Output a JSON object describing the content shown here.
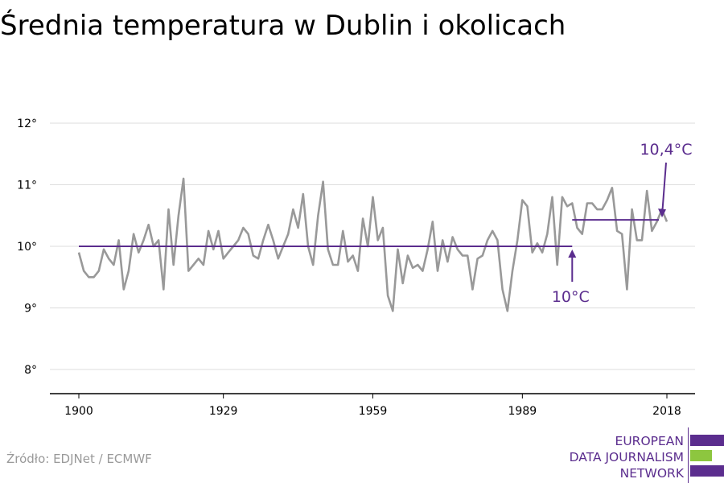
{
  "title": "Średnia temperatura w Dublin i okolicach",
  "source": "Źródło: EDJNet / ECMWF",
  "logo": {
    "lines": [
      "EUROPEAN",
      "DATA JOURNALISM",
      "NETWORK"
    ],
    "colors": [
      "#5b2d8e",
      "#8dc63f",
      "#5b2d8e"
    ]
  },
  "colors": {
    "series": "#999999",
    "reference": "#5b2d8e",
    "grid": "#dddddd",
    "axis": "#000000"
  },
  "chart_data": {
    "type": "line",
    "title": "Średnia temperatura w Dublin i okolicach",
    "xlabel": "",
    "ylabel": "",
    "xlim": [
      1900,
      2018
    ],
    "ylim": [
      7.6,
      12.4
    ],
    "x_ticks": [
      1900,
      1929,
      1959,
      1989,
      2018
    ],
    "x_tick_labels": [
      "1900",
      "1929",
      "1959",
      "1989",
      "2018"
    ],
    "y_ticks": [
      8,
      9,
      10,
      11,
      12
    ],
    "y_tick_labels": [
      "8°",
      "9°",
      "10°",
      "11°",
      "12°"
    ],
    "grid": true,
    "series": [
      {
        "x_start": 1900,
        "x_end": 2018,
        "values": [
          9.9,
          9.6,
          9.5,
          9.5,
          9.6,
          9.95,
          9.8,
          9.7,
          10.1,
          9.3,
          9.6,
          10.2,
          9.9,
          10.1,
          10.35,
          10.0,
          10.1,
          9.3,
          10.6,
          9.7,
          10.5,
          11.1,
          9.6,
          9.7,
          9.8,
          9.7,
          10.25,
          9.95,
          10.25,
          9.8,
          9.9,
          10.0,
          10.1,
          10.3,
          10.2,
          9.85,
          9.8,
          10.1,
          10.35,
          10.1,
          9.8,
          10.0,
          10.2,
          10.6,
          10.3,
          10.85,
          10.0,
          9.7,
          10.5,
          11.05,
          9.95,
          9.7,
          9.7,
          10.25,
          9.75,
          9.85,
          9.6,
          10.45,
          10.0,
          10.8,
          10.1,
          10.3,
          9.2,
          8.95,
          9.95,
          9.4,
          9.85,
          9.65,
          9.7,
          9.6,
          9.95,
          10.4,
          9.6,
          10.1,
          9.75,
          10.15,
          9.95,
          9.85,
          9.85,
          9.3,
          9.8,
          9.85,
          10.1,
          10.25,
          10.1,
          9.3,
          8.95,
          9.6,
          10.1,
          10.75,
          10.65,
          9.9,
          10.05,
          9.9,
          10.2,
          10.8,
          9.7,
          10.8,
          10.65,
          10.7,
          10.3,
          10.2,
          10.7,
          10.7,
          10.6,
          10.6,
          10.75,
          10.95,
          10.25,
          10.2,
          9.3,
          10.6,
          10.1,
          10.1,
          10.9,
          10.25,
          10.4,
          10.6,
          10.4
        ]
      }
    ],
    "reference_lines": [
      {
        "x_from": 1900,
        "x_to": 1999,
        "y": 10.0,
        "label": "10°C"
      },
      {
        "x_from": 1999,
        "x_to": 2018,
        "y": 10.43,
        "label": "10,4°C"
      }
    ]
  }
}
